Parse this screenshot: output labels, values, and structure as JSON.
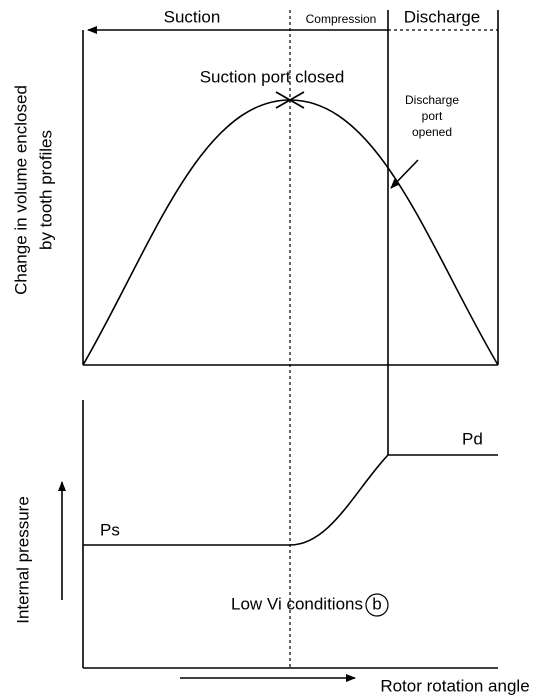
{
  "phases": {
    "suction": "Suction",
    "compression": "Compression",
    "discharge": "Discharge"
  },
  "annotations": {
    "suction_port_closed": "Suction port closed",
    "discharge_port_opened": [
      "Discharge",
      "port",
      "opened"
    ],
    "ps": "Ps",
    "pd": "Pd",
    "conditions": "Low Vi conditions",
    "condition_mark": "b"
  },
  "axes": {
    "top_y_label": [
      "Change in volume enclosed",
      "by tooth profiles"
    ],
    "bottom_y_label": "Internal pressure",
    "x_label": "Rotor rotation angle"
  }
}
